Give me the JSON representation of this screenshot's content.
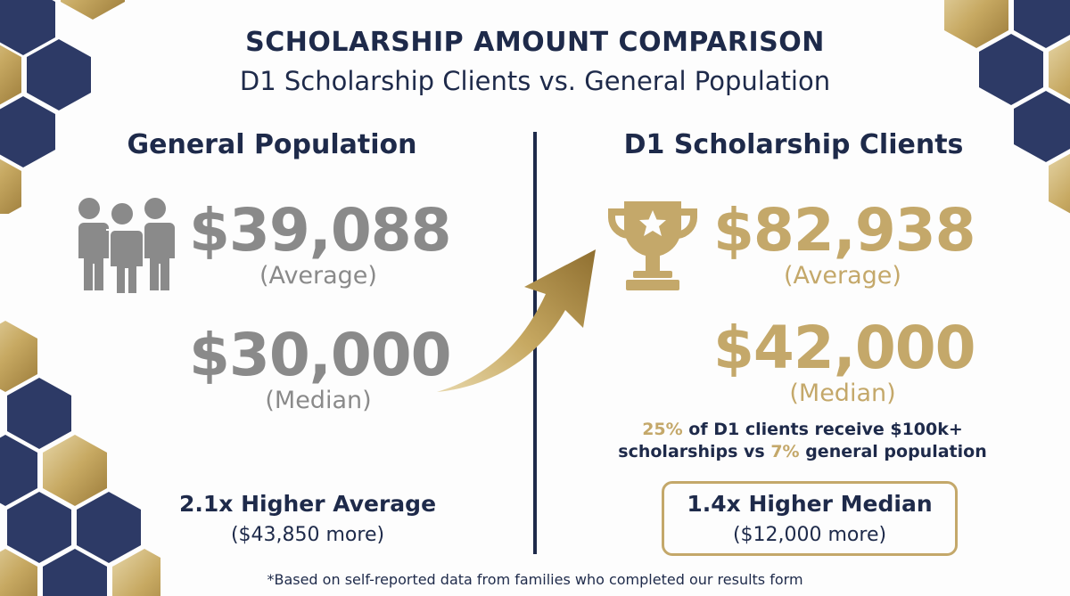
{
  "title": "SCHOLARSHIP AMOUNT COMPARISON",
  "subtitle": "D1 Scholarship Clients vs. General Population",
  "general": {
    "heading": "General Population",
    "average_value": "$39,088",
    "average_label": "(Average)",
    "median_value": "$30,000",
    "median_label": "(Median)",
    "comparison_heading": "2.1x Higher Average",
    "comparison_sub": "($43,850 more)",
    "icon": "people-group-icon"
  },
  "d1": {
    "heading": "D1 Scholarship Clients",
    "average_value": "$82,938",
    "average_label": "(Average)",
    "median_value": "$42,000",
    "median_label": "(Median)",
    "stat_line1_pct": "25%",
    "stat_line1_rest": " of D1 clients receive $100k+",
    "stat_line2_pre": "scholarships vs ",
    "stat_line2_pct": "7%",
    "stat_line2_rest": " general population",
    "comparison_heading": "1.4x Higher Median",
    "comparison_sub": "($12,000 more)",
    "icon": "trophy-icon"
  },
  "arrow_icon": "up-right-arrow-icon",
  "footnote": "*Based on self-reported data from families who completed our results form",
  "colors": {
    "navy": "#1e2a4a",
    "gold": "#c4a86a",
    "gray": "#8a8a8a"
  }
}
